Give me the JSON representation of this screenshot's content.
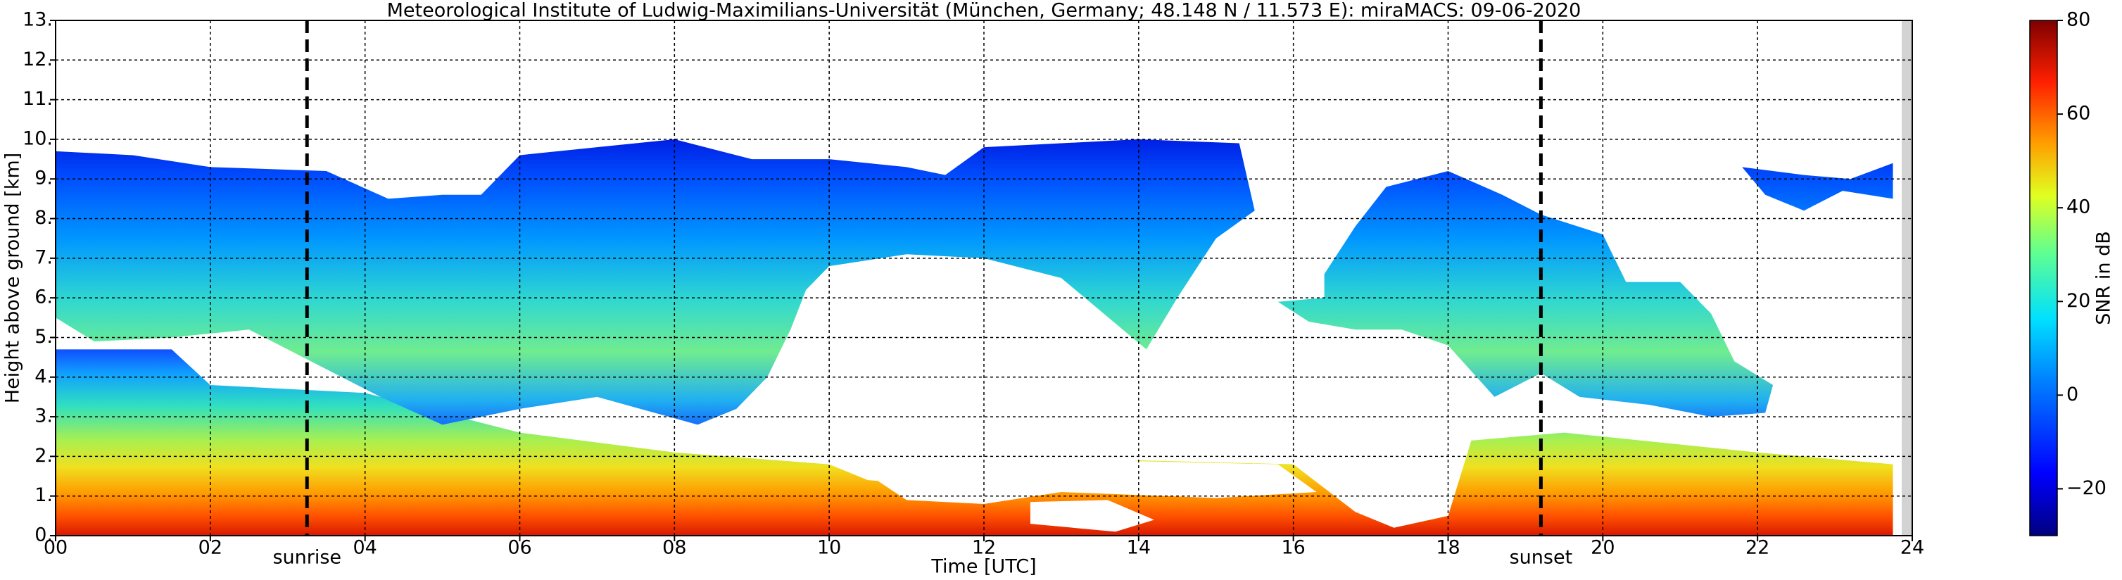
{
  "chart_data": {
    "type": "heatmap",
    "title": "Meteorological Institute of Ludwig-Maximilians-Universität (München, Germany; 48.148 N / 11.573 E):    miraMACS: 09-06-2020",
    "xlabel": "Time [UTC]",
    "ylabel": "Height above ground [km]",
    "xlim": [
      0,
      24
    ],
    "xticks": [
      {
        "value": 0,
        "label": "00"
      },
      {
        "value": 2,
        "label": "02"
      },
      {
        "value": 4,
        "label": "04"
      },
      {
        "value": 6,
        "label": "06"
      },
      {
        "value": 8,
        "label": "08"
      },
      {
        "value": 10,
        "label": "10"
      },
      {
        "value": 12,
        "label": "12"
      },
      {
        "value": 14,
        "label": "14"
      },
      {
        "value": 16,
        "label": "16"
      },
      {
        "value": 18,
        "label": "18"
      },
      {
        "value": 20,
        "label": "20"
      },
      {
        "value": 22,
        "label": "22"
      },
      {
        "value": 24,
        "label": "24"
      }
    ],
    "ylim": [
      0,
      13
    ],
    "yticks": [
      {
        "value": 0,
        "label": "0."
      },
      {
        "value": 1,
        "label": "1."
      },
      {
        "value": 2,
        "label": "2."
      },
      {
        "value": 3,
        "label": "3."
      },
      {
        "value": 4,
        "label": "4."
      },
      {
        "value": 5,
        "label": "5."
      },
      {
        "value": 6,
        "label": "6."
      },
      {
        "value": 7,
        "label": "7."
      },
      {
        "value": 8,
        "label": "8."
      },
      {
        "value": 9,
        "label": "9."
      },
      {
        "value": 10,
        "label": "10."
      },
      {
        "value": 11,
        "label": "11."
      },
      {
        "value": 12,
        "label": "12."
      },
      {
        "value": 13,
        "label": "13."
      }
    ],
    "grid": true,
    "annotations": [
      {
        "x": 3.25,
        "text": "sunrise"
      },
      {
        "x": 19.2,
        "text": "sunset"
      }
    ],
    "colorbar": {
      "label": "SNR in dB",
      "lim": [
        -30,
        80
      ],
      "ticks": [
        {
          "value": -20,
          "label": "−20"
        },
        0,
        20,
        40,
        60,
        80
      ]
    }
  }
}
